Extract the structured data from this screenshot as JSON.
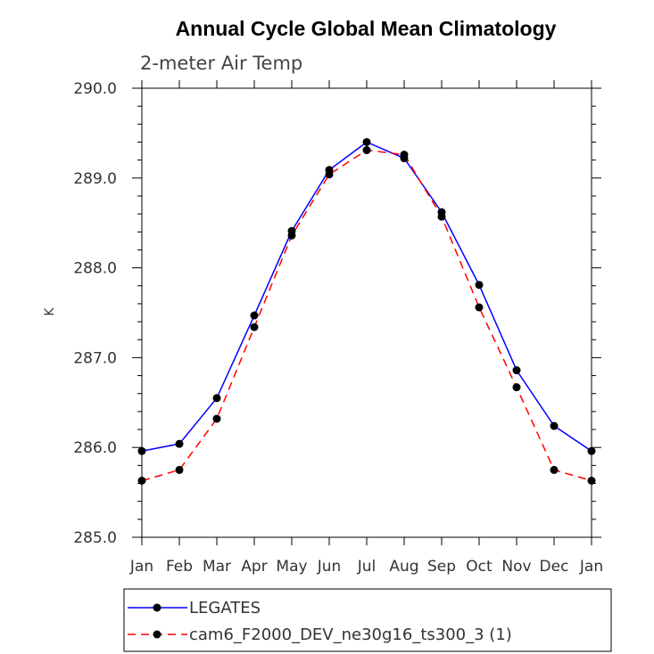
{
  "chart_data": {
    "type": "line",
    "title": "Annual Cycle Global Mean Climatology",
    "subtitle": "2-meter Air Temp",
    "xlabel": "",
    "ylabel": "K",
    "categories": [
      "Jan",
      "Feb",
      "Mar",
      "Apr",
      "May",
      "Jun",
      "Jul",
      "Aug",
      "Sep",
      "Oct",
      "Nov",
      "Dec",
      "Jan"
    ],
    "ylim": [
      285.0,
      290.0
    ],
    "yticks": [
      "285.0",
      "286.0",
      "287.0",
      "288.0",
      "289.0",
      "290.0"
    ],
    "grid": false,
    "legend_position": "bottom",
    "series": [
      {
        "name": "LEGATES",
        "color": "#0000ff",
        "dash": "solid",
        "marker": "circle",
        "values": [
          285.96,
          286.04,
          286.55,
          287.47,
          288.41,
          289.09,
          289.4,
          289.22,
          288.62,
          287.81,
          286.86,
          286.24,
          285.96
        ]
      },
      {
        "name": "cam6_F2000_DEV_ne30g16_ts300_3 (1)",
        "color": "#ff0000",
        "dash": "dashed",
        "marker": "circle",
        "values": [
          285.63,
          285.75,
          286.32,
          287.34,
          288.36,
          289.04,
          289.31,
          289.26,
          288.57,
          287.56,
          286.67,
          285.75,
          285.63
        ]
      }
    ]
  }
}
